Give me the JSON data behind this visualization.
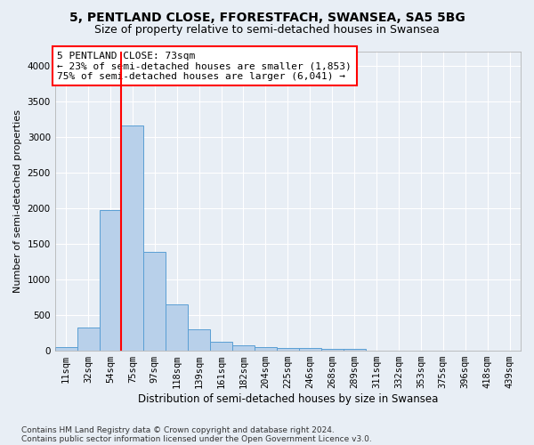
{
  "title": "5, PENTLAND CLOSE, FFORESTFACH, SWANSEA, SA5 5BG",
  "subtitle": "Size of property relative to semi-detached houses in Swansea",
  "xlabel": "Distribution of semi-detached houses by size in Swansea",
  "ylabel": "Number of semi-detached properties",
  "categories": [
    "11sqm",
    "32sqm",
    "54sqm",
    "75sqm",
    "97sqm",
    "118sqm",
    "139sqm",
    "161sqm",
    "182sqm",
    "204sqm",
    "225sqm",
    "246sqm",
    "268sqm",
    "289sqm",
    "311sqm",
    "332sqm",
    "353sqm",
    "375sqm",
    "396sqm",
    "418sqm",
    "439sqm"
  ],
  "values": [
    50,
    320,
    1970,
    3160,
    1390,
    645,
    305,
    130,
    75,
    50,
    40,
    35,
    30,
    30,
    0,
    0,
    0,
    0,
    0,
    0,
    0
  ],
  "bar_color": "#b8d0ea",
  "bar_edge_color": "#5a9fd4",
  "vline_color": "red",
  "vline_index": 3,
  "annotation_text": "5 PENTLAND CLOSE: 73sqm\n← 23% of semi-detached houses are smaller (1,853)\n75% of semi-detached houses are larger (6,041) →",
  "annotation_box_facecolor": "white",
  "annotation_box_edgecolor": "red",
  "ylim": [
    0,
    4200
  ],
  "yticks": [
    0,
    500,
    1000,
    1500,
    2000,
    2500,
    3000,
    3500,
    4000
  ],
  "bg_color": "#e8eef5",
  "grid_color": "#ffffff",
  "title_fontsize": 10,
  "subtitle_fontsize": 9,
  "xlabel_fontsize": 8.5,
  "ylabel_fontsize": 8,
  "tick_fontsize": 7.5,
  "annotation_fontsize": 8,
  "footnote": "Contains HM Land Registry data © Crown copyright and database right 2024.\nContains public sector information licensed under the Open Government Licence v3.0.",
  "footnote_fontsize": 6.5
}
